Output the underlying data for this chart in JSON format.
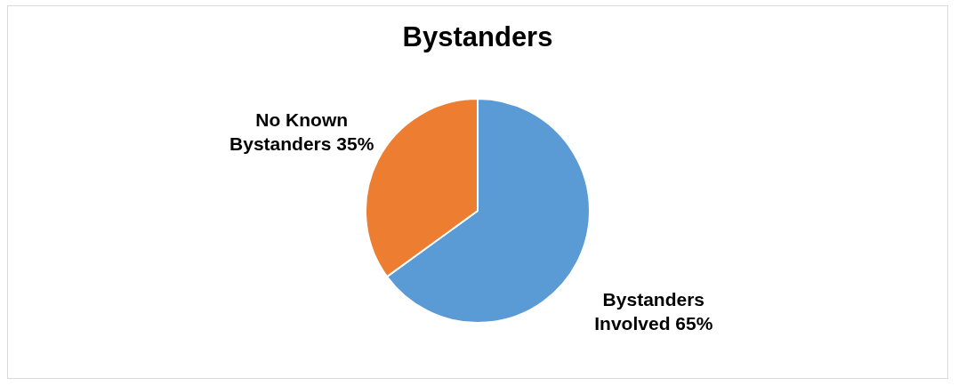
{
  "chart_data": {
    "type": "pie",
    "title": "Bystanders",
    "categories": [
      "Bystanders Involved",
      "No Known Bystanders"
    ],
    "values": [
      65,
      35
    ],
    "value_labels": [
      "65%",
      "35%"
    ],
    "colors": [
      "#5b9bd5",
      "#ed7d31"
    ],
    "legend": false
  }
}
